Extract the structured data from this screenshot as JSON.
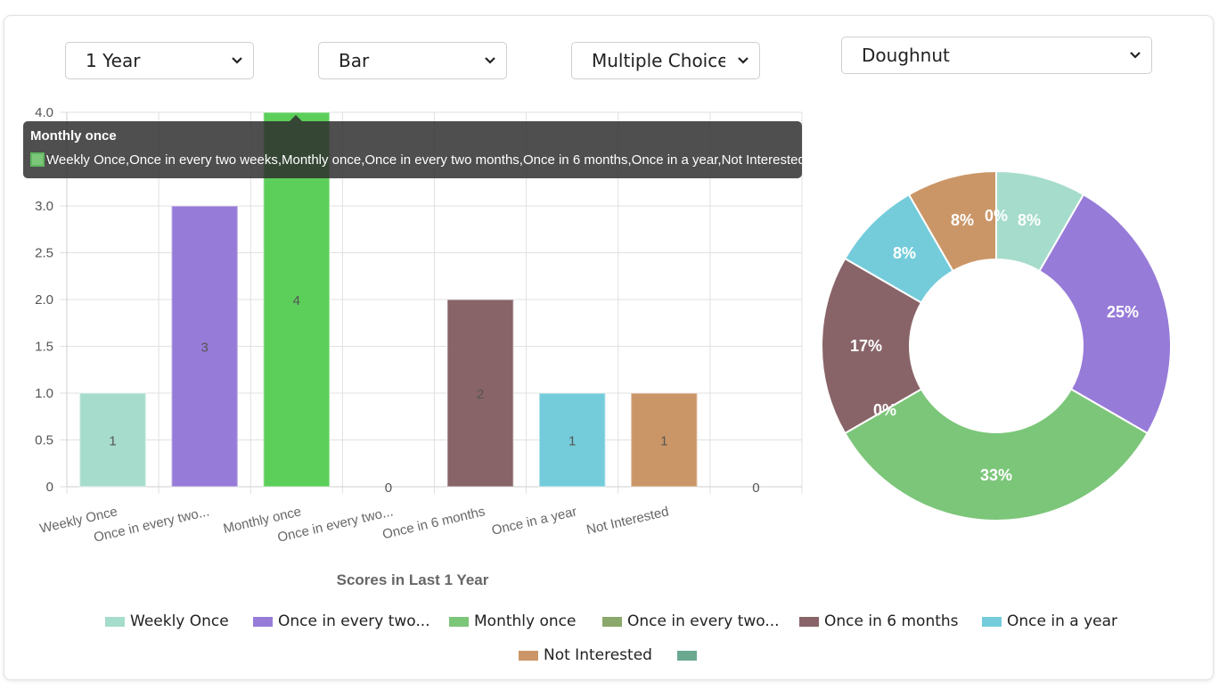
{
  "controls": {
    "period": {
      "value": "1 Year"
    },
    "chart_type": {
      "value": "Bar"
    },
    "question_type": {
      "value": "Multiple Choice"
    },
    "pie_type": {
      "value": "Doughnut"
    }
  },
  "tooltip": {
    "title": "Monthly once",
    "body": "Weekly Once,Once in every two weeks,Monthly once,Once in every two months,Once in 6 months,Once in a year,Not Interested"
  },
  "colors": {
    "weekly": "#a6dccb",
    "two_weeks": "#977bd8",
    "monthly_bar": "#5ccf5a",
    "monthly_slice": "#7cc67a",
    "two_months": "#8aa86b",
    "six_months": "#886468",
    "year": "#74ccdb",
    "not_interested": "#cb9667",
    "extra": "#6aa890"
  },
  "chart_data": [
    {
      "type": "bar",
      "xlabel": "Scores in Last 1 Year",
      "ylim": [
        0,
        4
      ],
      "yticks": [
        "0",
        "0.5",
        "1.0",
        "1.5",
        "2.0",
        "2.5",
        "3.0",
        "3.5",
        "4.0"
      ],
      "categories": [
        "Weekly Once",
        "Once in every two...",
        "Monthly once",
        "Once in every two...",
        "Once in 6 months",
        "Once in a year",
        "Not Interested",
        ""
      ],
      "values": [
        1,
        3,
        4,
        0,
        2,
        1,
        1,
        0
      ],
      "data_labels": [
        "1",
        "3",
        "4",
        "0",
        "2",
        "1",
        "1",
        "0"
      ],
      "grid": true
    },
    {
      "type": "pie",
      "style": "doughnut",
      "labels": [
        "Weekly Once",
        "Once in every two...",
        "Monthly once",
        "Once in every two...",
        "Once in 6 months",
        "Once in a year",
        "Not Interested",
        ""
      ],
      "values": [
        1,
        3,
        4,
        0,
        2,
        1,
        1,
        0
      ],
      "percent_labels": [
        "8%",
        "25%",
        "33%",
        "0%",
        "17%",
        "8%",
        "8%",
        "0%"
      ]
    }
  ],
  "legend": [
    {
      "label": "Weekly Once",
      "color": "#a6dccb"
    },
    {
      "label": "Once in every two...",
      "color": "#977bd8"
    },
    {
      "label": "Monthly once",
      "color": "#7cc67a"
    },
    {
      "label": "Once in every two...",
      "color": "#8aa86b"
    },
    {
      "label": "Once in 6 months",
      "color": "#886468"
    },
    {
      "label": "Once in a year",
      "color": "#74ccdb"
    },
    {
      "label": "Not Interested",
      "color": "#cb9667"
    },
    {
      "label": "",
      "color": "#6aa890"
    }
  ]
}
